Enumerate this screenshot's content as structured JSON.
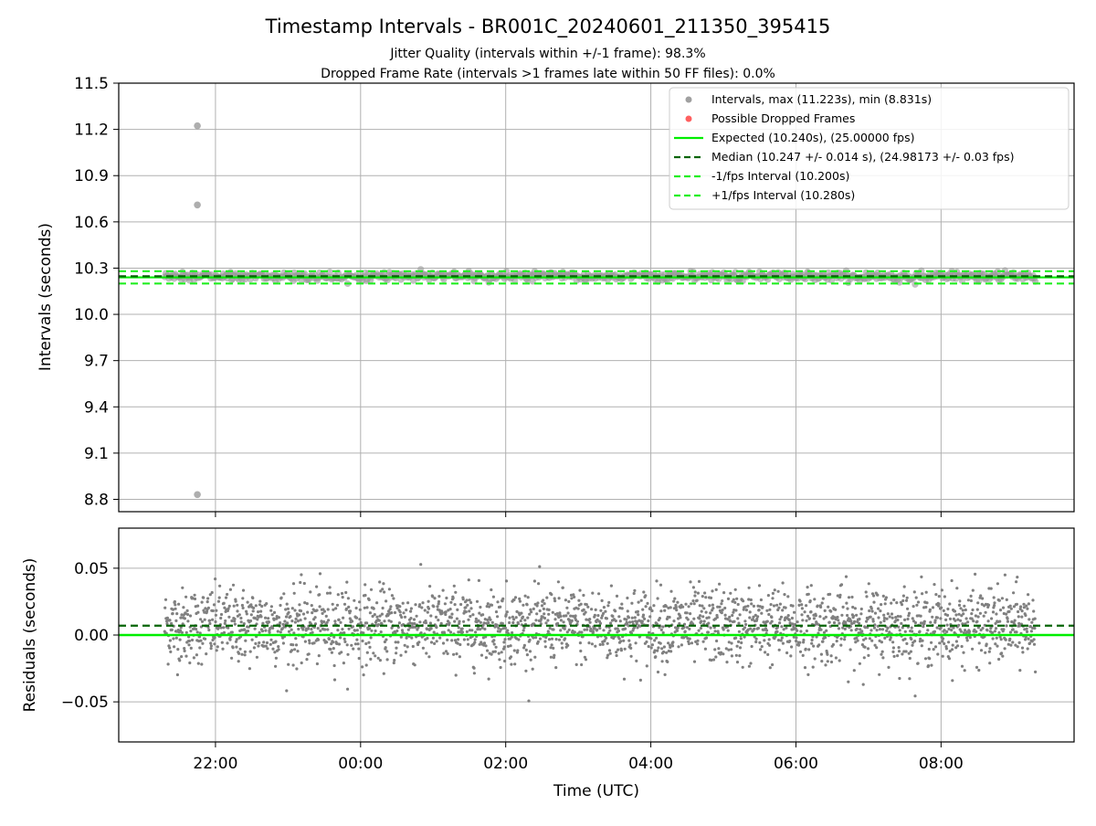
{
  "chart_data": [
    {
      "type": "scatter",
      "title": "Timestamp Intervals - BR001C_20240601_211350_395415",
      "subtitle_1": "Jitter Quality (intervals within +/-1 frame): 98.3%",
      "subtitle_2": "Dropped Frame Rate (intervals >1 frames late within 50 FF files): 0.0%",
      "ylabel": "Intervals (seconds)",
      "ylim": [
        8.72,
        11.5
      ],
      "yticks": [
        "11.5",
        "11.2",
        "10.9",
        "10.6",
        "10.3",
        "10.0",
        "9.7",
        "9.4",
        "9.1",
        "8.8"
      ],
      "ytick_values": [
        11.5,
        11.2,
        10.9,
        10.6,
        10.3,
        10.0,
        9.7,
        9.4,
        9.1,
        8.8
      ],
      "grid": true,
      "legend_placement": "top-right",
      "legend": [
        "Intervals, max (11.223s), min (8.831s)",
        "Possible Dropped Frames",
        "Expected (10.240s), (25.00000 fps)",
        "Median (10.247 +/- 0.014 s), (24.98173 +/- 0.03 fps)",
        "-1/fps Interval (10.200s)",
        "+1/fps Interval (10.280s)"
      ],
      "expected": 10.24,
      "median": 10.247,
      "lower_interval": 10.2,
      "upper_interval": 10.28,
      "outliers": [
        {
          "t": "21:45",
          "v": 11.223
        },
        {
          "t": "21:45",
          "v": 10.71
        },
        {
          "t": "21:45",
          "v": 8.831
        }
      ],
      "series_note": "dense cluster of intervals around 10.247 +/- 0.014 s from 21:18 to 09:18"
    },
    {
      "type": "scatter",
      "ylabel": "Residuals (seconds)",
      "xlabel": "Time (UTC)",
      "ylim": [
        -0.08,
        0.08
      ],
      "yticks": [
        "0.05",
        "0.00",
        "−0.05"
      ],
      "ytick_values": [
        0.05,
        0.0,
        -0.05
      ],
      "xticks": [
        "22:00",
        "00:00",
        "02:00",
        "04:00",
        "06:00",
        "08:00"
      ],
      "x_range": [
        "20:40",
        "09:50"
      ],
      "data_range": [
        "21:18",
        "09:18"
      ],
      "residual_median": 0.007,
      "residual_expected": 0.0,
      "residual_std": 0.014
    }
  ],
  "colors": {
    "points": "#808080",
    "expected": "#00ee00",
    "median": "#006400",
    "interval": "#22ee22",
    "dropped": "#ff5555",
    "grid": "#b0b0b0"
  }
}
